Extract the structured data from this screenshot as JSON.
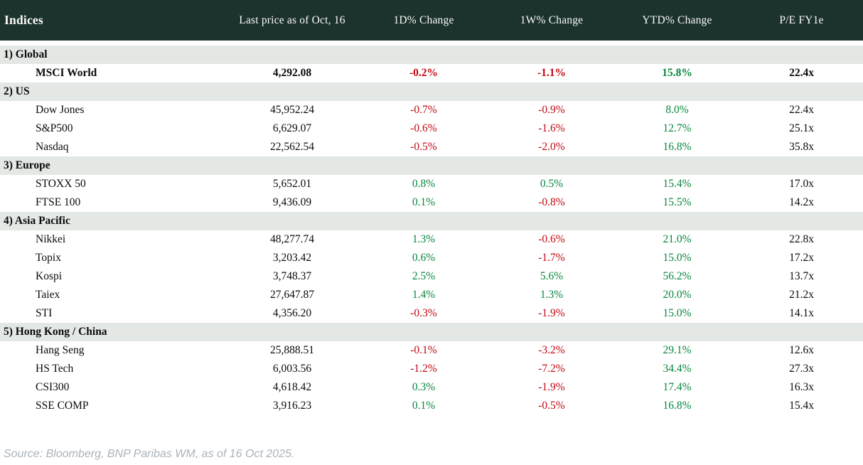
{
  "chart_data": {
    "type": "table",
    "title": "Indices",
    "columns": [
      "Indices",
      "Last price as of Oct, 16",
      "1D% Change",
      "1W% Change",
      "YTD% Change",
      "P/E FY1e"
    ],
    "sections": [
      {
        "label": "1) Global",
        "rows": [
          {
            "name": "MSCI World",
            "values": [
              "4,292.08",
              "-0.2%",
              "-1.1%",
              "15.8%",
              "22.4x"
            ],
            "bold": true
          }
        ]
      },
      {
        "label": "2) US",
        "rows": [
          {
            "name": "Dow Jones",
            "values": [
              "45,952.24",
              "-0.7%",
              "-0.9%",
              "8.0%",
              "22.4x"
            ]
          },
          {
            "name": "S&P500",
            "values": [
              "6,629.07",
              "-0.6%",
              "-1.6%",
              "12.7%",
              "25.1x"
            ]
          },
          {
            "name": "Nasdaq",
            "values": [
              "22,562.54",
              "-0.5%",
              "-2.0%",
              "16.8%",
              "35.8x"
            ]
          }
        ]
      },
      {
        "label": "3) Europe",
        "rows": [
          {
            "name": "STOXX 50",
            "values": [
              "5,652.01",
              "0.8%",
              "0.5%",
              "15.4%",
              "17.0x"
            ]
          },
          {
            "name": "FTSE 100",
            "values": [
              "9,436.09",
              "0.1%",
              "-0.8%",
              "15.5%",
              "14.2x"
            ]
          }
        ]
      },
      {
        "label": "4) Asia Pacific",
        "rows": [
          {
            "name": "Nikkei",
            "values": [
              "48,277.74",
              "1.3%",
              "-0.6%",
              "21.0%",
              "22.8x"
            ]
          },
          {
            "name": "Topix",
            "values": [
              "3,203.42",
              "0.6%",
              "-1.7%",
              "15.0%",
              "17.2x"
            ]
          },
          {
            "name": "Kospi",
            "values": [
              "3,748.37",
              "2.5%",
              "5.6%",
              "56.2%",
              "13.7x"
            ]
          },
          {
            "name": "Taiex",
            "values": [
              "27,647.87",
              "1.4%",
              "1.3%",
              "20.0%",
              "21.2x"
            ]
          },
          {
            "name": "STI",
            "values": [
              "4,356.20",
              "-0.3%",
              "-1.9%",
              "15.0%",
              "14.1x"
            ]
          }
        ]
      },
      {
        "label": "5) Hong Kong / China",
        "rows": [
          {
            "name": "Hang Seng",
            "values": [
              "25,888.51",
              "-0.1%",
              "-3.2%",
              "29.1%",
              "12.6x"
            ]
          },
          {
            "name": "HS Tech",
            "values": [
              "6,003.56",
              "-1.2%",
              "-7.2%",
              "34.4%",
              "27.3x"
            ]
          },
          {
            "name": "CSI300",
            "values": [
              "4,618.42",
              "0.3%",
              "-1.9%",
              "17.4%",
              "16.3x"
            ]
          },
          {
            "name": "SSE COMP",
            "values": [
              "3,916.23",
              "0.1%",
              "-0.5%",
              "16.8%",
              "15.4x"
            ]
          }
        ]
      }
    ],
    "value_column_names": [
      "last-price",
      "1d-change",
      "1w-change",
      "ytd-change",
      "pe-fy1e"
    ],
    "layout": {
      "signed_color_columns": [
        1,
        2,
        3
      ]
    }
  },
  "footer": {
    "source": "Source: Bloomberg, BNP Paribas WM, as of 16 Oct 2025."
  },
  "colors": {
    "positive": "#07863c",
    "negative": "#c00811",
    "header_bg": "#1b322e",
    "band_bg": "#e3e8e5",
    "header_text": "#fbfaf5",
    "source_text": "#a9b3ba"
  }
}
